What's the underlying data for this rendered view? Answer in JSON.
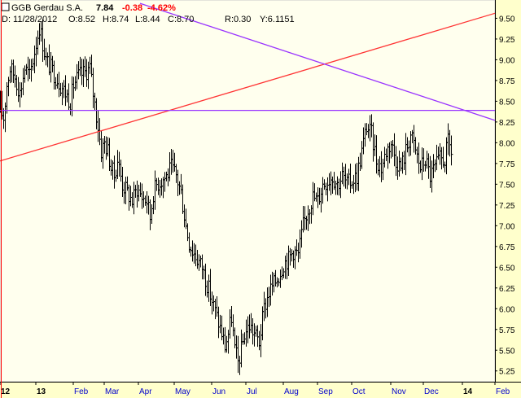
{
  "header": {
    "symbol": "GGB Gerdau S.A.",
    "last": "7.84",
    "change": "-0.38",
    "change_pct": "-4.62%",
    "date_label": "D: 11/28/2012",
    "open_label": "O:8.52",
    "high_label": "H:8.74",
    "low_label": "L:8.44",
    "close_label": "C:8.70",
    "r_label": "R:0.30",
    "y_label": "Y:6.1151"
  },
  "colors": {
    "background": "#ffffff",
    "panel": "#ffffee",
    "price_axis_bg": "#ffffcc",
    "time_axis_bg": "#ffffcc",
    "bars": "#000000",
    "red_line": "#ff3333",
    "purple_line": "#9933ff",
    "change_negative": "#ff0000",
    "time_labels": "#0000cc",
    "cursor_line": "#ff0000"
  },
  "chart_data": {
    "type": "ohlc",
    "ylim": [
      5.12,
      9.72
    ],
    "yticks": [
      "5.25",
      "5.50",
      "5.75",
      "6.00",
      "6.25",
      "6.50",
      "6.75",
      "7.00",
      "7.25",
      "7.50",
      "7.75",
      "8.00",
      "8.25",
      "8.50",
      "8.75",
      "9.00",
      "9.25",
      "9.50"
    ],
    "xlim": [
      0,
      320
    ],
    "xticks": [
      {
        "label": "12",
        "x": 0,
        "bold": true
      },
      {
        "label": "13",
        "x": 22,
        "bold": true
      },
      {
        "label": "Feb",
        "x": 45,
        "bold": false
      },
      {
        "label": "Mar",
        "x": 64,
        "bold": false
      },
      {
        "label": "Apr",
        "x": 85,
        "bold": false
      },
      {
        "label": "May",
        "x": 107,
        "bold": false
      },
      {
        "label": "Jun",
        "x": 130,
        "bold": false
      },
      {
        "label": "Jul",
        "x": 151,
        "bold": false
      },
      {
        "label": "Aug",
        "x": 174,
        "bold": false
      },
      {
        "label": "Sep",
        "x": 195,
        "bold": false
      },
      {
        "label": "Oct",
        "x": 216,
        "bold": false
      },
      {
        "label": "Nov",
        "x": 240,
        "bold": false
      },
      {
        "label": "Dec",
        "x": 260,
        "bold": false
      },
      {
        "label": "14",
        "x": 284,
        "bold": true
      },
      {
        "label": "Feb",
        "x": 304,
        "bold": false
      }
    ],
    "anchors": [
      [
        0,
        8.4
      ],
      [
        2,
        8.3
      ],
      [
        4,
        8.7
      ],
      [
        6,
        8.9
      ],
      [
        9,
        8.8
      ],
      [
        12,
        8.6
      ],
      [
        15,
        8.9
      ],
      [
        18,
        8.8
      ],
      [
        21,
        9.1
      ],
      [
        24,
        9.4
      ],
      [
        26,
        9.2
      ],
      [
        28,
        9.0
      ],
      [
        31,
        8.9
      ],
      [
        34,
        8.8
      ],
      [
        37,
        8.7
      ],
      [
        40,
        8.6
      ],
      [
        43,
        8.5
      ],
      [
        45,
        8.7
      ],
      [
        48,
        8.8
      ],
      [
        52,
        8.85
      ],
      [
        55,
        8.9
      ],
      [
        57,
        8.6
      ],
      [
        60,
        8.2
      ],
      [
        62,
        7.9
      ],
      [
        64,
        8.0
      ],
      [
        66,
        7.9
      ],
      [
        68,
        7.7
      ],
      [
        70,
        7.6
      ],
      [
        72,
        7.8
      ],
      [
        75,
        7.5
      ],
      [
        78,
        7.4
      ],
      [
        81,
        7.3
      ],
      [
        84,
        7.45
      ],
      [
        87,
        7.35
      ],
      [
        90,
        7.3
      ],
      [
        92,
        7.1
      ],
      [
        94,
        7.4
      ],
      [
        96,
        7.5
      ],
      [
        99,
        7.55
      ],
      [
        102,
        7.6
      ],
      [
        105,
        7.7
      ],
      [
        108,
        7.6
      ],
      [
        111,
        7.4
      ],
      [
        114,
        7.0
      ],
      [
        116,
        6.8
      ],
      [
        118,
        6.7
      ],
      [
        121,
        6.6
      ],
      [
        124,
        6.5
      ],
      [
        127,
        6.3
      ],
      [
        130,
        6.1
      ],
      [
        133,
        5.9
      ],
      [
        136,
        5.7
      ],
      [
        138,
        5.55
      ],
      [
        140,
        5.7
      ],
      [
        142,
        5.9
      ],
      [
        144,
        5.5
      ],
      [
        146,
        5.35
      ],
      [
        148,
        5.5
      ],
      [
        150,
        5.7
      ],
      [
        153,
        5.8
      ],
      [
        156,
        5.7
      ],
      [
        159,
        5.6
      ],
      [
        162,
        6.0
      ],
      [
        165,
        6.2
      ],
      [
        168,
        6.3
      ],
      [
        171,
        6.4
      ],
      [
        174,
        6.55
      ],
      [
        177,
        6.6
      ],
      [
        180,
        6.7
      ],
      [
        183,
        6.65
      ],
      [
        186,
        7.0
      ],
      [
        189,
        7.2
      ],
      [
        192,
        7.35
      ],
      [
        195,
        7.3
      ],
      [
        198,
        7.5
      ],
      [
        201,
        7.55
      ],
      [
        204,
        7.6
      ],
      [
        207,
        7.5
      ],
      [
        210,
        7.6
      ],
      [
        213,
        7.5
      ],
      [
        216,
        7.55
      ],
      [
        219,
        7.6
      ],
      [
        222,
        7.9
      ],
      [
        225,
        8.2
      ],
      [
        228,
        8.1
      ],
      [
        231,
        7.8
      ],
      [
        234,
        7.7
      ],
      [
        237,
        7.9
      ],
      [
        240,
        8.0
      ],
      [
        243,
        7.8
      ],
      [
        246,
        7.7
      ],
      [
        249,
        7.9
      ],
      [
        252,
        8.1
      ],
      [
        255,
        7.9
      ],
      [
        258,
        7.7
      ],
      [
        261,
        7.8
      ],
      [
        264,
        7.6
      ],
      [
        267,
        7.7
      ],
      [
        270,
        7.8
      ],
      [
        273,
        7.8
      ],
      [
        275,
        8.0
      ],
      [
        277,
        7.9
      ]
    ],
    "lines": [
      {
        "name": "red",
        "color": "#ff3333",
        "x1": 0,
        "y1": 7.78,
        "x2": 304,
        "y2": 9.56
      },
      {
        "name": "purple-diagonal",
        "color": "#9933ff",
        "x1": 86,
        "y1": 9.68,
        "x2": 304,
        "y2": 8.27
      },
      {
        "name": "purple-horizontal",
        "color": "#9933ff",
        "x1": 0,
        "y1": 8.39,
        "x2": 304,
        "y2": 8.39
      }
    ],
    "cursor_x": 0
  }
}
